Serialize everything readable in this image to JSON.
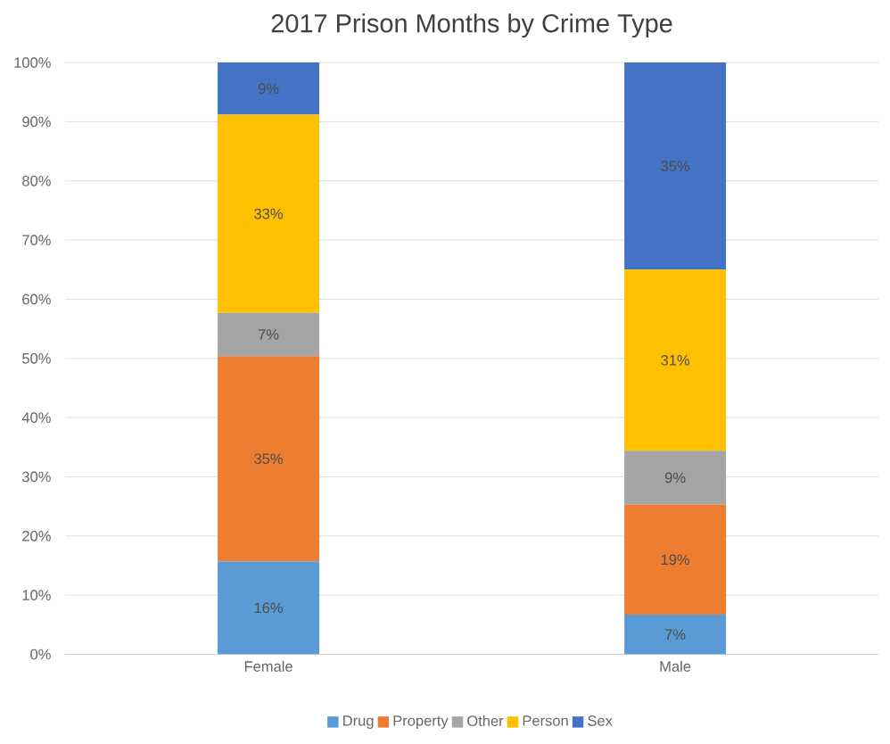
{
  "chart_data": {
    "type": "bar",
    "stacked": true,
    "title": "2017 Prison Months by Crime Type",
    "categories": [
      "Female",
      "Male"
    ],
    "series": [
      {
        "name": "Drug",
        "color": "#5b9bd5",
        "values": [
          15.7,
          6.7
        ],
        "value_labels": [
          "16%",
          "7%"
        ]
      },
      {
        "name": "Property",
        "color": "#ed7d31",
        "values": [
          34.7,
          18.6
        ],
        "value_labels": [
          "35%",
          "19%"
        ]
      },
      {
        "name": "Other",
        "color": "#a5a5a5",
        "values": [
          7.3,
          9.1
        ],
        "value_labels": [
          "7%",
          "9%"
        ]
      },
      {
        "name": "Person",
        "color": "#ffc000",
        "values": [
          33.5,
          30.6
        ],
        "value_labels": [
          "33%",
          "31%"
        ]
      },
      {
        "name": "Sex",
        "color": "#4472c4",
        "values": [
          8.8,
          35.0
        ],
        "value_labels": [
          "9%",
          "35%"
        ]
      }
    ],
    "ylim": [
      0,
      100
    ],
    "yticks": [
      {
        "value": 0,
        "label": "0%"
      },
      {
        "value": 10,
        "label": "10%"
      },
      {
        "value": 20,
        "label": "20%"
      },
      {
        "value": 30,
        "label": "30%"
      },
      {
        "value": 40,
        "label": "40%"
      },
      {
        "value": 50,
        "label": "50%"
      },
      {
        "value": 60,
        "label": "60%"
      },
      {
        "value": 70,
        "label": "70%"
      },
      {
        "value": 80,
        "label": "80%"
      },
      {
        "value": 90,
        "label": "90%"
      },
      {
        "value": 100,
        "label": "100%"
      }
    ],
    "grid": "y",
    "legend": "bottom"
  }
}
